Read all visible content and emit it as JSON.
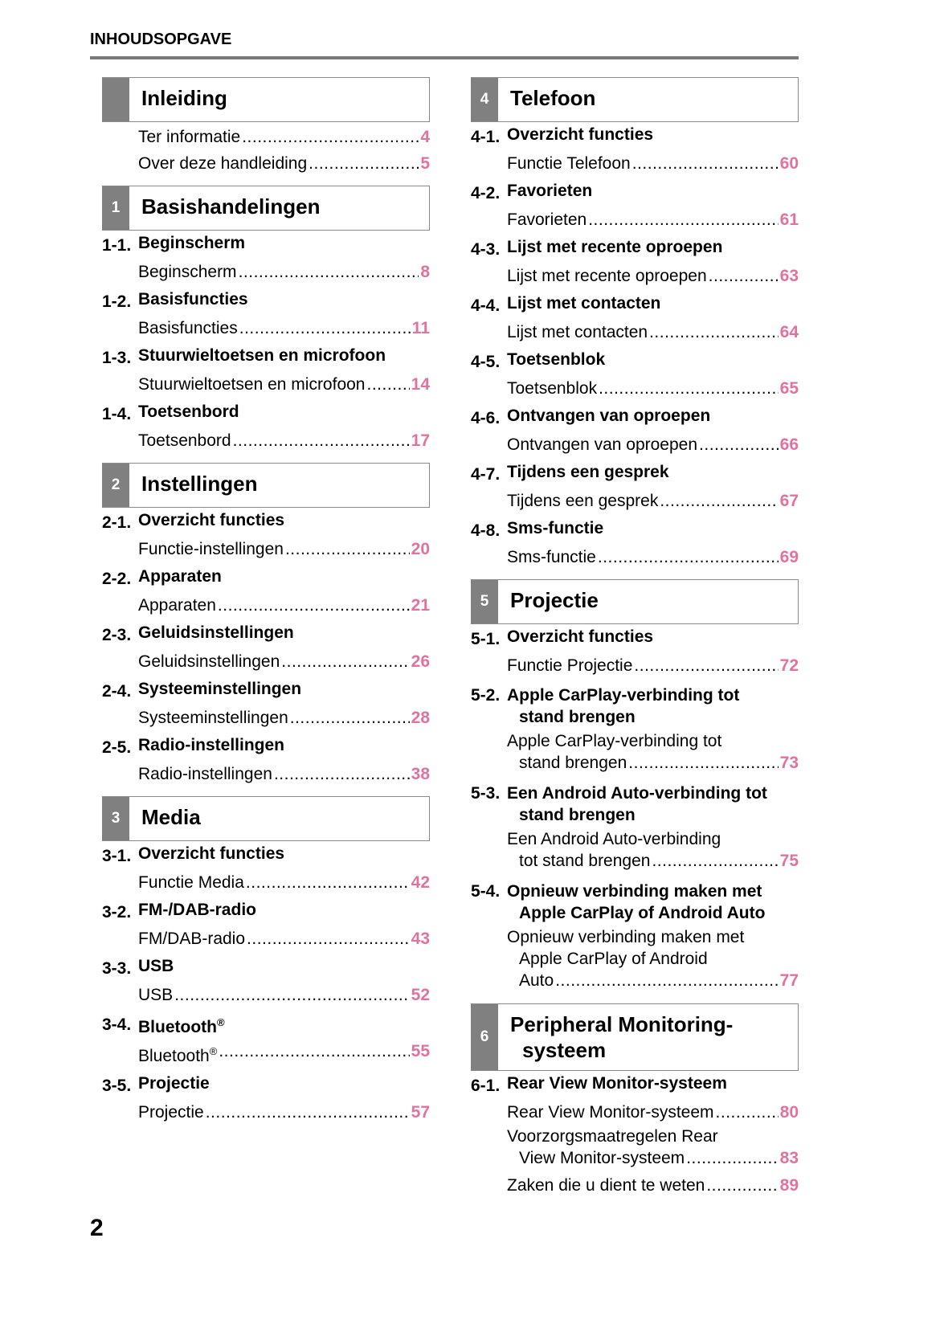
{
  "header": "INHOUDSOPGAVE",
  "page_number": "2",
  "colors": {
    "page_ref": "#e0729f",
    "section_block": "#808080"
  },
  "columns": [
    [
      {
        "section": {
          "num": "",
          "title": [
            "Inleiding"
          ]
        },
        "groups": [
          {
            "head": null,
            "entries": [
              {
                "lines": [
                  "Ter informatie"
                ],
                "page": "4"
              },
              {
                "lines": [
                  "Over deze handleiding"
                ],
                "page": "5"
              }
            ]
          }
        ]
      },
      {
        "section": {
          "num": "1",
          "title": [
            "Basishandelingen"
          ]
        },
        "groups": [
          {
            "head": {
              "n": "1-1.",
              "lines": [
                "Beginscherm"
              ]
            },
            "entries": [
              {
                "lines": [
                  "Beginscherm"
                ],
                "page": "8"
              }
            ]
          },
          {
            "head": {
              "n": "1-2.",
              "lines": [
                "Basisfuncties"
              ]
            },
            "entries": [
              {
                "lines": [
                  "Basisfuncties"
                ],
                "page": "11"
              }
            ]
          },
          {
            "head": {
              "n": "1-3.",
              "lines": [
                "Stuurwieltoetsen en microfoon"
              ]
            },
            "entries": [
              {
                "lines": [
                  "Stuurwieltoetsen en microfoon"
                ],
                "page": "14"
              }
            ]
          },
          {
            "head": {
              "n": "1-4.",
              "lines": [
                "Toetsenbord"
              ]
            },
            "entries": [
              {
                "lines": [
                  "Toetsenbord"
                ],
                "page": "17"
              }
            ]
          }
        ]
      },
      {
        "section": {
          "num": "2",
          "title": [
            "Instellingen"
          ]
        },
        "groups": [
          {
            "head": {
              "n": "2-1.",
              "lines": [
                "Overzicht functies"
              ]
            },
            "entries": [
              {
                "lines": [
                  "Functie-instellingen"
                ],
                "page": "20"
              }
            ]
          },
          {
            "head": {
              "n": "2-2.",
              "lines": [
                "Apparaten"
              ]
            },
            "entries": [
              {
                "lines": [
                  "Apparaten"
                ],
                "page": "21"
              }
            ]
          },
          {
            "head": {
              "n": "2-3.",
              "lines": [
                "Geluidsinstellingen"
              ]
            },
            "entries": [
              {
                "lines": [
                  "Geluidsinstellingen"
                ],
                "page": "26"
              }
            ]
          },
          {
            "head": {
              "n": "2-4.",
              "lines": [
                "Systeeminstellingen"
              ]
            },
            "entries": [
              {
                "lines": [
                  "Systeeminstellingen"
                ],
                "page": "28"
              }
            ]
          },
          {
            "head": {
              "n": "2-5.",
              "lines": [
                "Radio-instellingen"
              ]
            },
            "entries": [
              {
                "lines": [
                  "Radio-instellingen"
                ],
                "page": "38"
              }
            ]
          }
        ]
      },
      {
        "section": {
          "num": "3",
          "title": [
            "Media"
          ]
        },
        "groups": [
          {
            "head": {
              "n": "3-1.",
              "lines": [
                "Overzicht functies"
              ]
            },
            "entries": [
              {
                "lines": [
                  "Functie Media"
                ],
                "page": "42"
              }
            ]
          },
          {
            "head": {
              "n": "3-2.",
              "lines": [
                "FM-/DAB-radio"
              ]
            },
            "entries": [
              {
                "lines": [
                  "FM/DAB-radio"
                ],
                "page": "43"
              }
            ]
          },
          {
            "head": {
              "n": "3-3.",
              "lines": [
                "USB"
              ]
            },
            "entries": [
              {
                "lines": [
                  "USB"
                ],
                "page": "52"
              }
            ]
          },
          {
            "head": {
              "n": "3-4.",
              "lines": [
                "Bluetooth®"
              ]
            },
            "entries": [
              {
                "lines": [
                  "Bluetooth®"
                ],
                "page": "55"
              }
            ]
          },
          {
            "head": {
              "n": "3-5.",
              "lines": [
                "Projectie"
              ]
            },
            "entries": [
              {
                "lines": [
                  "Projectie"
                ],
                "page": "57"
              }
            ]
          }
        ]
      }
    ],
    [
      {
        "section": {
          "num": "4",
          "title": [
            "Telefoon"
          ]
        },
        "groups": [
          {
            "head": {
              "n": "4-1.",
              "lines": [
                "Overzicht functies"
              ]
            },
            "entries": [
              {
                "lines": [
                  "Functie Telefoon"
                ],
                "page": "60"
              }
            ]
          },
          {
            "head": {
              "n": "4-2.",
              "lines": [
                "Favorieten"
              ]
            },
            "entries": [
              {
                "lines": [
                  "Favorieten"
                ],
                "page": "61"
              }
            ]
          },
          {
            "head": {
              "n": "4-3.",
              "lines": [
                "Lijst met recente oproepen"
              ]
            },
            "entries": [
              {
                "lines": [
                  "Lijst met recente oproepen"
                ],
                "page": "63"
              }
            ]
          },
          {
            "head": {
              "n": "4-4.",
              "lines": [
                "Lijst met contacten"
              ]
            },
            "entries": [
              {
                "lines": [
                  "Lijst met contacten"
                ],
                "page": "64"
              }
            ]
          },
          {
            "head": {
              "n": "4-5.",
              "lines": [
                "Toetsenblok"
              ]
            },
            "entries": [
              {
                "lines": [
                  "Toetsenblok"
                ],
                "page": "65"
              }
            ]
          },
          {
            "head": {
              "n": "4-6.",
              "lines": [
                "Ontvangen van oproepen"
              ]
            },
            "entries": [
              {
                "lines": [
                  "Ontvangen van oproepen"
                ],
                "page": "66"
              }
            ]
          },
          {
            "head": {
              "n": "4-7.",
              "lines": [
                "Tijdens een gesprek"
              ]
            },
            "entries": [
              {
                "lines": [
                  "Tijdens een gesprek"
                ],
                "page": "67"
              }
            ]
          },
          {
            "head": {
              "n": "4-8.",
              "lines": [
                "Sms-functie"
              ]
            },
            "entries": [
              {
                "lines": [
                  "Sms-functie"
                ],
                "page": "69"
              }
            ]
          }
        ]
      },
      {
        "section": {
          "num": "5",
          "title": [
            "Projectie"
          ]
        },
        "groups": [
          {
            "head": {
              "n": "5-1.",
              "lines": [
                "Overzicht functies"
              ]
            },
            "entries": [
              {
                "lines": [
                  "Functie Projectie"
                ],
                "page": "72"
              }
            ]
          },
          {
            "head": {
              "n": "5-2.",
              "lines": [
                "Apple CarPlay-verbinding tot",
                "stand brengen"
              ]
            },
            "entries": [
              {
                "lines": [
                  "Apple CarPlay-verbinding tot",
                  "stand brengen"
                ],
                "page": "73"
              }
            ]
          },
          {
            "head": {
              "n": "5-3.",
              "lines": [
                "Een Android Auto-verbinding tot",
                "stand brengen"
              ]
            },
            "entries": [
              {
                "lines": [
                  "Een Android Auto-verbinding",
                  "tot stand brengen"
                ],
                "page": "75"
              }
            ]
          },
          {
            "head": {
              "n": "5-4.",
              "lines": [
                "Opnieuw verbinding maken met",
                "Apple CarPlay of Android Auto"
              ]
            },
            "entries": [
              {
                "lines": [
                  "Opnieuw verbinding maken met",
                  "Apple CarPlay of Android",
                  "Auto"
                ],
                "page": "77"
              }
            ]
          }
        ]
      },
      {
        "section": {
          "num": "6",
          "title": [
            "Peripheral Monitoring-",
            "systeem"
          ]
        },
        "groups": [
          {
            "head": {
              "n": "6-1.",
              "lines": [
                "Rear View Monitor-systeem"
              ]
            },
            "entries": [
              {
                "lines": [
                  "Rear View Monitor-systeem"
                ],
                "page": "80"
              },
              {
                "lines": [
                  "Voorzorgsmaatregelen Rear",
                  "View Monitor-systeem"
                ],
                "page": "83"
              },
              {
                "lines": [
                  "Zaken die u dient te weten"
                ],
                "page": "89"
              }
            ]
          }
        ]
      }
    ]
  ]
}
